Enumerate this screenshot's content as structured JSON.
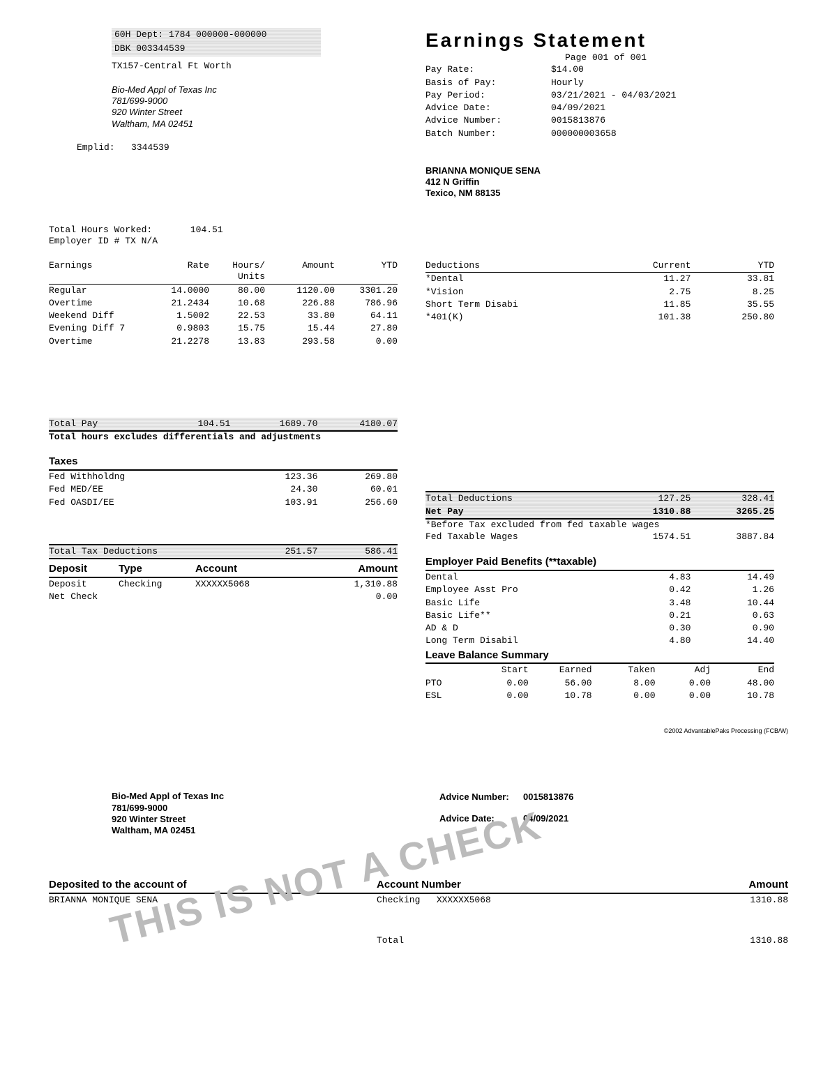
{
  "header": {
    "dept_line1": "60H  Dept:  1784              000000-000000",
    "dept_line2": "DBK      003344539",
    "location": "TX157-Central  Ft Worth",
    "company_name": "Bio-Med  Appl  of  Texas  Inc",
    "company_phone": "781/699-9000",
    "company_addr1": "920  Winter  Street",
    "company_addr2": "Waltham,  MA   02451",
    "emplid_label": "Emplid:",
    "emplid": "3344539"
  },
  "statement": {
    "title": "Earnings   Statement",
    "page": "Page  001 of 001",
    "fields": [
      [
        "Pay  Rate:",
        "$14.00"
      ],
      [
        "Basis of Pay:",
        "Hourly"
      ],
      [
        "Pay  Period:",
        "03/21/2021 - 04/03/2021"
      ],
      [
        "Advice Date:",
        "04/09/2021"
      ],
      [
        "Advice Number:",
        "0015813876"
      ],
      [
        "Batch Number:",
        "000000003658"
      ]
    ],
    "employee_name": "BRIANNA   MONIQUE   SENA",
    "employee_addr1": "412   N  Griffin",
    "employee_addr2": "Texico,    NM    88135"
  },
  "hours": {
    "total_worked_label": "Total Hours Worked:",
    "total_worked": "104.51",
    "employer_id_label": "Employer ID # TX N/A"
  },
  "earnings": {
    "headers": [
      "Earnings",
      "Rate",
      "Hours/\nUnits",
      "Amount",
      "YTD"
    ],
    "rows": [
      [
        "Regular",
        "14.0000",
        "80.00",
        "1120.00",
        "3301.20"
      ],
      [
        "Overtime",
        "21.2434",
        "10.68",
        "226.88",
        "786.96"
      ],
      [
        "Weekend  Diff",
        "1.5002",
        "22.53",
        "33.80",
        "64.11"
      ],
      [
        "Evening  Diff 7",
        "0.9803",
        "15.75",
        "15.44",
        "27.80"
      ],
      [
        "Overtime",
        "21.2278",
        "13.83",
        "293.58",
        "0.00"
      ]
    ],
    "total_label": "Total  Pay",
    "total": [
      "104.51",
      "1689.70",
      "4180.07"
    ],
    "note": "Total hours excludes differentials and adjustments"
  },
  "deductions": {
    "headers": [
      "Deductions",
      "Current",
      "YTD"
    ],
    "rows": [
      [
        "*Dental",
        "11.27",
        "33.81"
      ],
      [
        "*Vision",
        "2.75",
        "8.25"
      ],
      [
        "Short  Term  Disabi",
        "11.85",
        "35.55"
      ],
      [
        "*401(K)",
        "101.38",
        "250.80"
      ]
    ],
    "total_label": "Total  Deductions",
    "total": [
      "127.25",
      "328.41"
    ],
    "netpay_label": "Net  Pay",
    "netpay": [
      "1310.88",
      "3265.25"
    ],
    "note": "*Before  Tax  excluded  from fed  taxable  wages",
    "fed_taxable_label": "Fed  Taxable  Wages",
    "fed_taxable": [
      "1574.51",
      "3887.84"
    ]
  },
  "taxes": {
    "title": "Taxes",
    "rows": [
      [
        "Fed Withholdng",
        "123.36",
        "269.80"
      ],
      [
        "Fed MED/EE",
        "24.30",
        "60.01"
      ],
      [
        "Fed OASDI/EE",
        "103.91",
        "256.60"
      ]
    ],
    "total_label": "Total  Tax Deductions",
    "total": [
      "251.57",
      "586.41"
    ]
  },
  "deposit": {
    "headers": [
      "Deposit",
      "Type",
      "Account",
      "Amount"
    ],
    "rows": [
      [
        "Deposit",
        "Checking",
        "XXXXXX5068",
        "1,310.88"
      ],
      [
        "Net Check",
        "",
        "",
        "0.00"
      ]
    ]
  },
  "benefits": {
    "title": "Employer  Paid  Benefits  (**taxable)",
    "rows": [
      [
        "Dental",
        "4.83",
        "14.49"
      ],
      [
        "Employee  Asst  Pro",
        "0.42",
        "1.26"
      ],
      [
        "Basic  Life",
        "3.48",
        "10.44"
      ],
      [
        "Basic  Life**",
        "0.21",
        "0.63"
      ],
      [
        "AD & D",
        "0.30",
        "0.90"
      ],
      [
        "Long Term Disabil",
        "4.80",
        "14.40"
      ]
    ]
  },
  "leave": {
    "title": "Leave  Balance  Summary",
    "headers": [
      "",
      "Start",
      "Earned",
      "Taken",
      "Adj",
      "End"
    ],
    "rows": [
      [
        "PTO",
        "0.00",
        "56.00",
        "8.00",
        "0.00",
        "48.00"
      ],
      [
        "ESL",
        "0.00",
        "10.78",
        "0.00",
        "0.00",
        "10.78"
      ]
    ]
  },
  "footer_small": "©2002 AdvantablePaks Processing (FCB/W)",
  "stub": {
    "company_name": "Bio-Med    Appl   of  Texas    Inc",
    "company_phone": "781/699-9000",
    "company_addr1": "920   Winter   Street",
    "company_addr2": "Waltham,    MA    02451",
    "advice_num_label": "Advice   Number:",
    "advice_num": "0015813876",
    "advice_date_label": "Advice   Date:",
    "advice_date": "04/09/2021",
    "deposited_label": "Deposited  to  the  account  of",
    "acct_label": "Account  Number",
    "amount_label": "Amount",
    "name": "BRIANNA   MONIQUE    SENA",
    "acct_type": "Checking",
    "acct_num": "XXXXXX5068",
    "amount": "1310.88",
    "total_label": "Total",
    "total": "1310.88",
    "watermark": "THIS IS NOT A CHECK"
  }
}
